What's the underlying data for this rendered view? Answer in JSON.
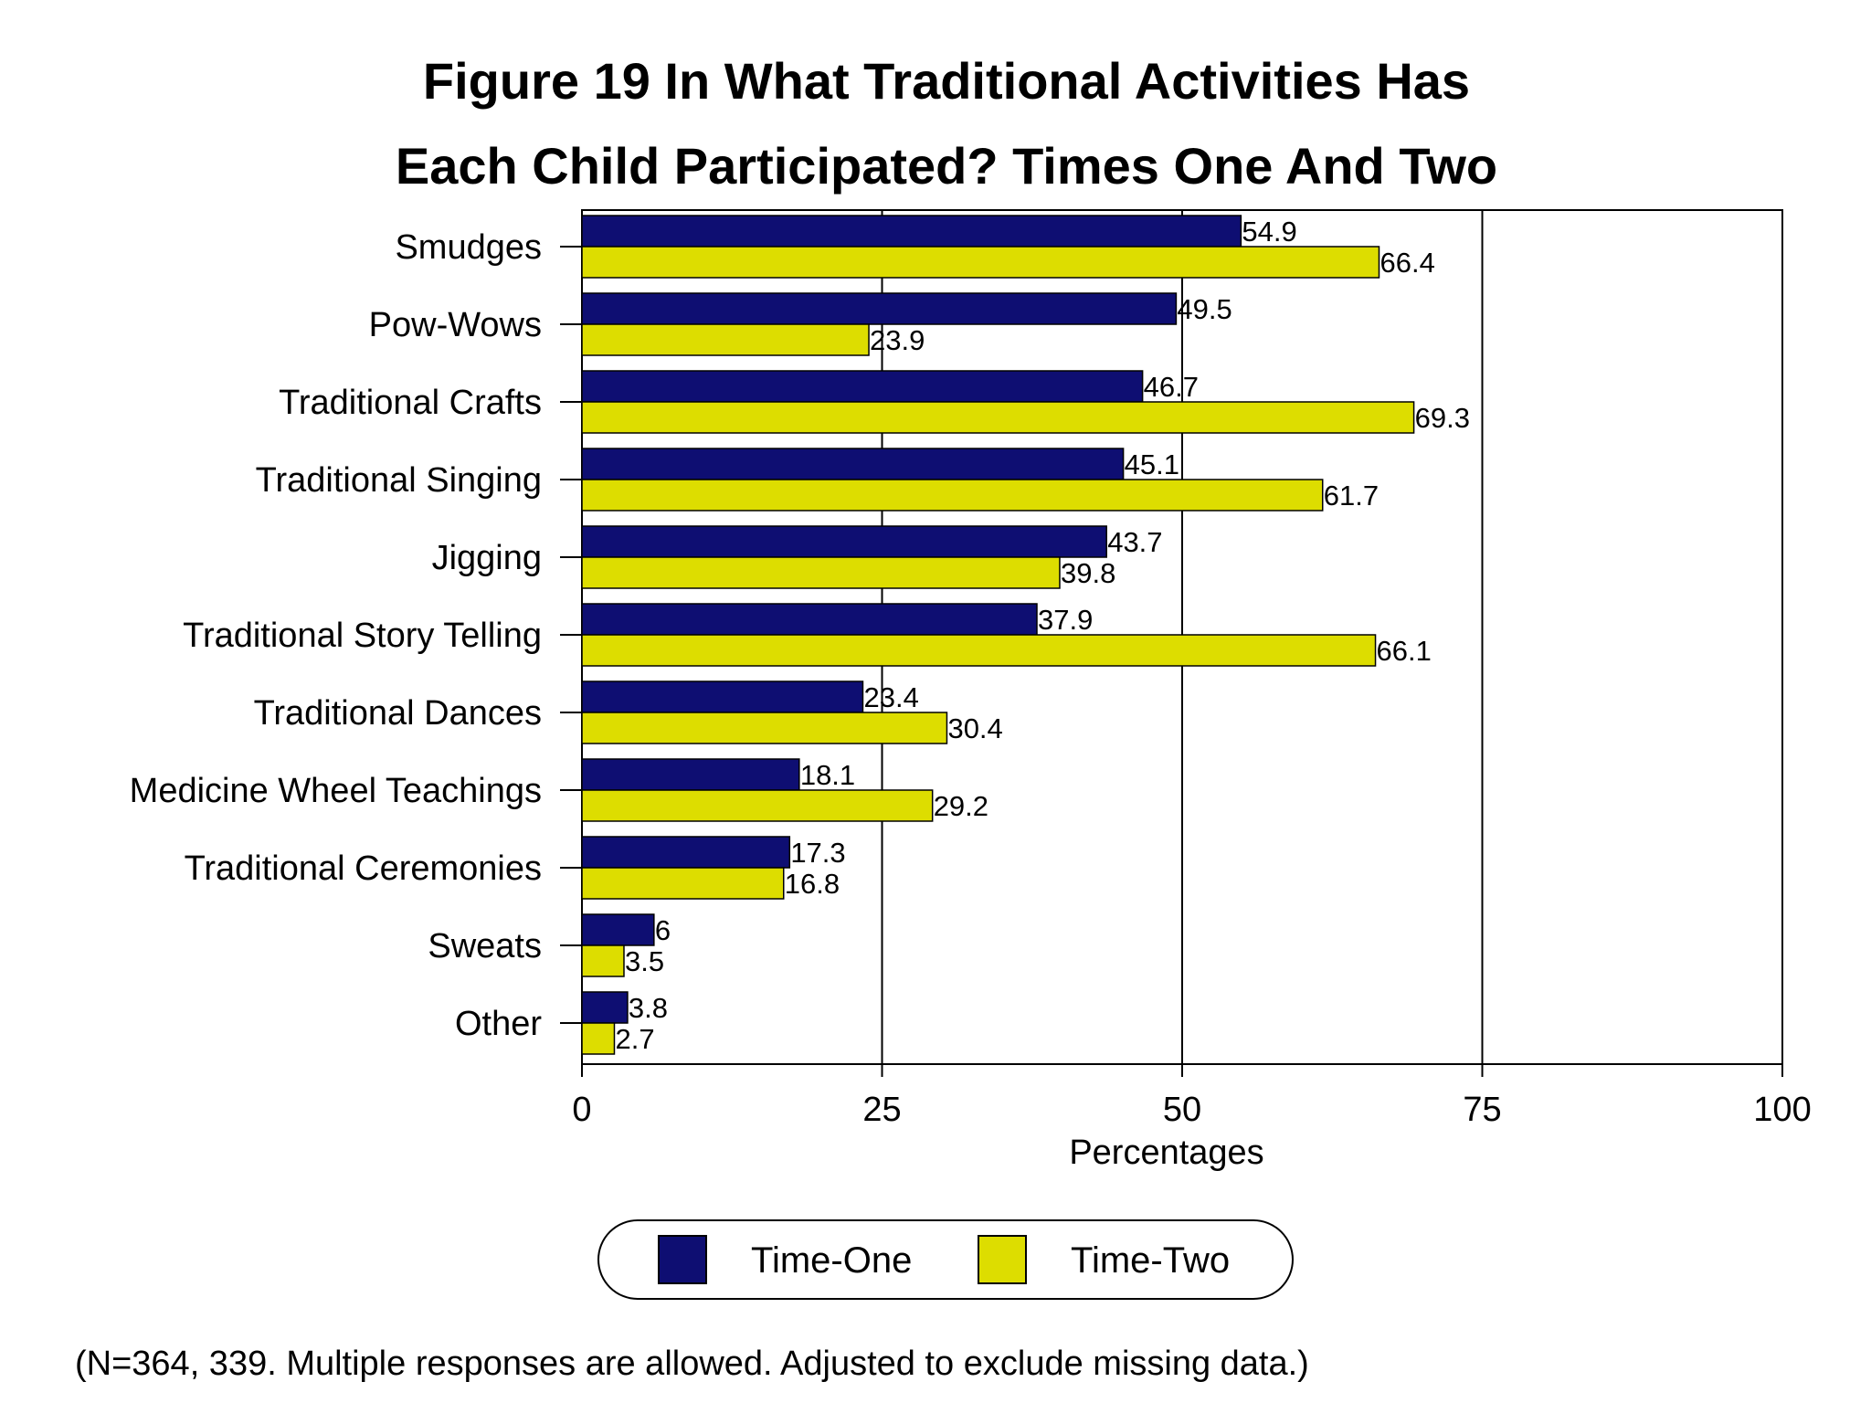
{
  "colors": {
    "time_one": "#0e0e72",
    "time_two": "#dddd00",
    "axis": "#000000",
    "grid": "#000000"
  },
  "chart_data": {
    "type": "bar",
    "orientation": "horizontal",
    "title_line1": "Figure 19  In What Traditional Activities Has",
    "title_line2": "Each Child Participated? Times One And Two",
    "categories": [
      "Smudges",
      "Pow-Wows",
      "Traditional Crafts",
      "Traditional Singing",
      "Jigging",
      "Traditional Story Telling",
      "Traditional Dances",
      "Medicine Wheel Teachings",
      "Traditional Ceremonies",
      "Sweats",
      "Other"
    ],
    "series": [
      {
        "name": "Time-One",
        "values": [
          54.9,
          49.5,
          46.7,
          45.1,
          43.7,
          37.9,
          23.4,
          18.1,
          17.3,
          6,
          3.8
        ],
        "labels": [
          "54.9",
          "49.5",
          "46.7",
          "45.1",
          "43.7",
          "37.9",
          "23.4",
          "18.1",
          "17.3",
          "6",
          "3.8"
        ]
      },
      {
        "name": "Time-Two",
        "values": [
          66.4,
          23.9,
          69.3,
          61.7,
          39.8,
          66.1,
          30.4,
          29.2,
          16.8,
          3.5,
          2.7
        ],
        "labels": [
          "66.4",
          "23.9",
          "69.3",
          "61.7",
          "39.8",
          "66.1",
          "30.4",
          "29.2",
          "16.8",
          "3.5",
          "2.7"
        ]
      }
    ],
    "xlabel": "Percentages",
    "ylabel": "",
    "xlim": [
      0,
      100
    ],
    "xticks": [
      0,
      25,
      50,
      75,
      100
    ],
    "xtick_labels": [
      "0",
      "25",
      "50",
      "75",
      "100"
    ],
    "grid": true,
    "legend_position": "bottom-center",
    "footnote": "(N=364, 339. Multiple responses are allowed. Adjusted to exclude missing data.)"
  }
}
